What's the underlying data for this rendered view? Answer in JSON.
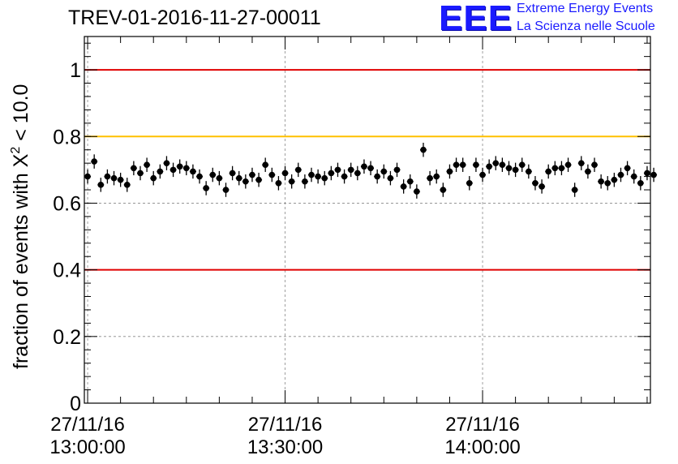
{
  "title": "TREV-01-2016-11-27-00011",
  "logo": {
    "mark": "EEE",
    "line1": "Extreme Energy Events",
    "line2": "La Scienza nelle Scuole",
    "color": "#1a1aff"
  },
  "chart_data": {
    "type": "scatter",
    "title": "TREV-01-2016-11-27-00011",
    "ylabel_prefix": "fraction of events with X",
    "ylabel_sup": "2",
    "ylabel_suffix": " < 10.0",
    "ylim": [
      0,
      1.1
    ],
    "yticks": [
      "0",
      "0.2",
      "0.4",
      "0.6",
      "0.8",
      "1"
    ],
    "xlim_minutes": [
      -0.5,
      85.5
    ],
    "xticks": [
      {
        "date": "27/11/16",
        "time": "13:00:00"
      },
      {
        "date": "27/11/16",
        "time": "13:30:00"
      },
      {
        "date": "27/11/16",
        "time": "14:00:00"
      }
    ],
    "grid": true,
    "reference_lines": [
      {
        "y": 1.0,
        "color": "#e00000"
      },
      {
        "y": 0.8,
        "color": "#ffc000"
      },
      {
        "y": 0.4,
        "color": "#e00000"
      }
    ],
    "marker_color": "#000000",
    "series": [
      {
        "x_start_time": "13:00:00",
        "x_step_minutes": 1,
        "values": [
          0.68,
          0.725,
          0.655,
          0.68,
          0.675,
          0.67,
          0.655,
          0.705,
          0.69,
          0.715,
          0.675,
          0.695,
          0.72,
          0.7,
          0.71,
          0.705,
          0.695,
          0.68,
          0.645,
          0.685,
          0.675,
          0.64,
          0.69,
          0.675,
          0.665,
          0.685,
          0.67,
          0.715,
          0.685,
          0.66,
          0.69,
          0.665,
          0.7,
          0.665,
          0.685,
          0.68,
          0.675,
          0.69,
          0.7,
          0.68,
          0.7,
          0.69,
          0.71,
          0.705,
          0.68,
          0.695,
          0.675,
          0.7,
          0.65,
          0.665,
          0.635,
          0.76,
          0.675,
          0.68,
          0.64,
          0.695,
          0.715,
          0.715,
          0.66,
          0.715,
          0.685,
          0.71,
          0.72,
          0.715,
          0.705,
          0.7,
          0.715,
          0.695,
          0.66,
          0.65,
          0.695,
          0.705,
          0.705,
          0.715,
          0.64,
          0.72,
          0.695,
          0.715,
          0.665,
          0.66,
          0.67,
          0.685,
          0.705,
          0.68,
          0.66,
          0.69,
          0.685
        ],
        "error": 0.014
      }
    ]
  }
}
